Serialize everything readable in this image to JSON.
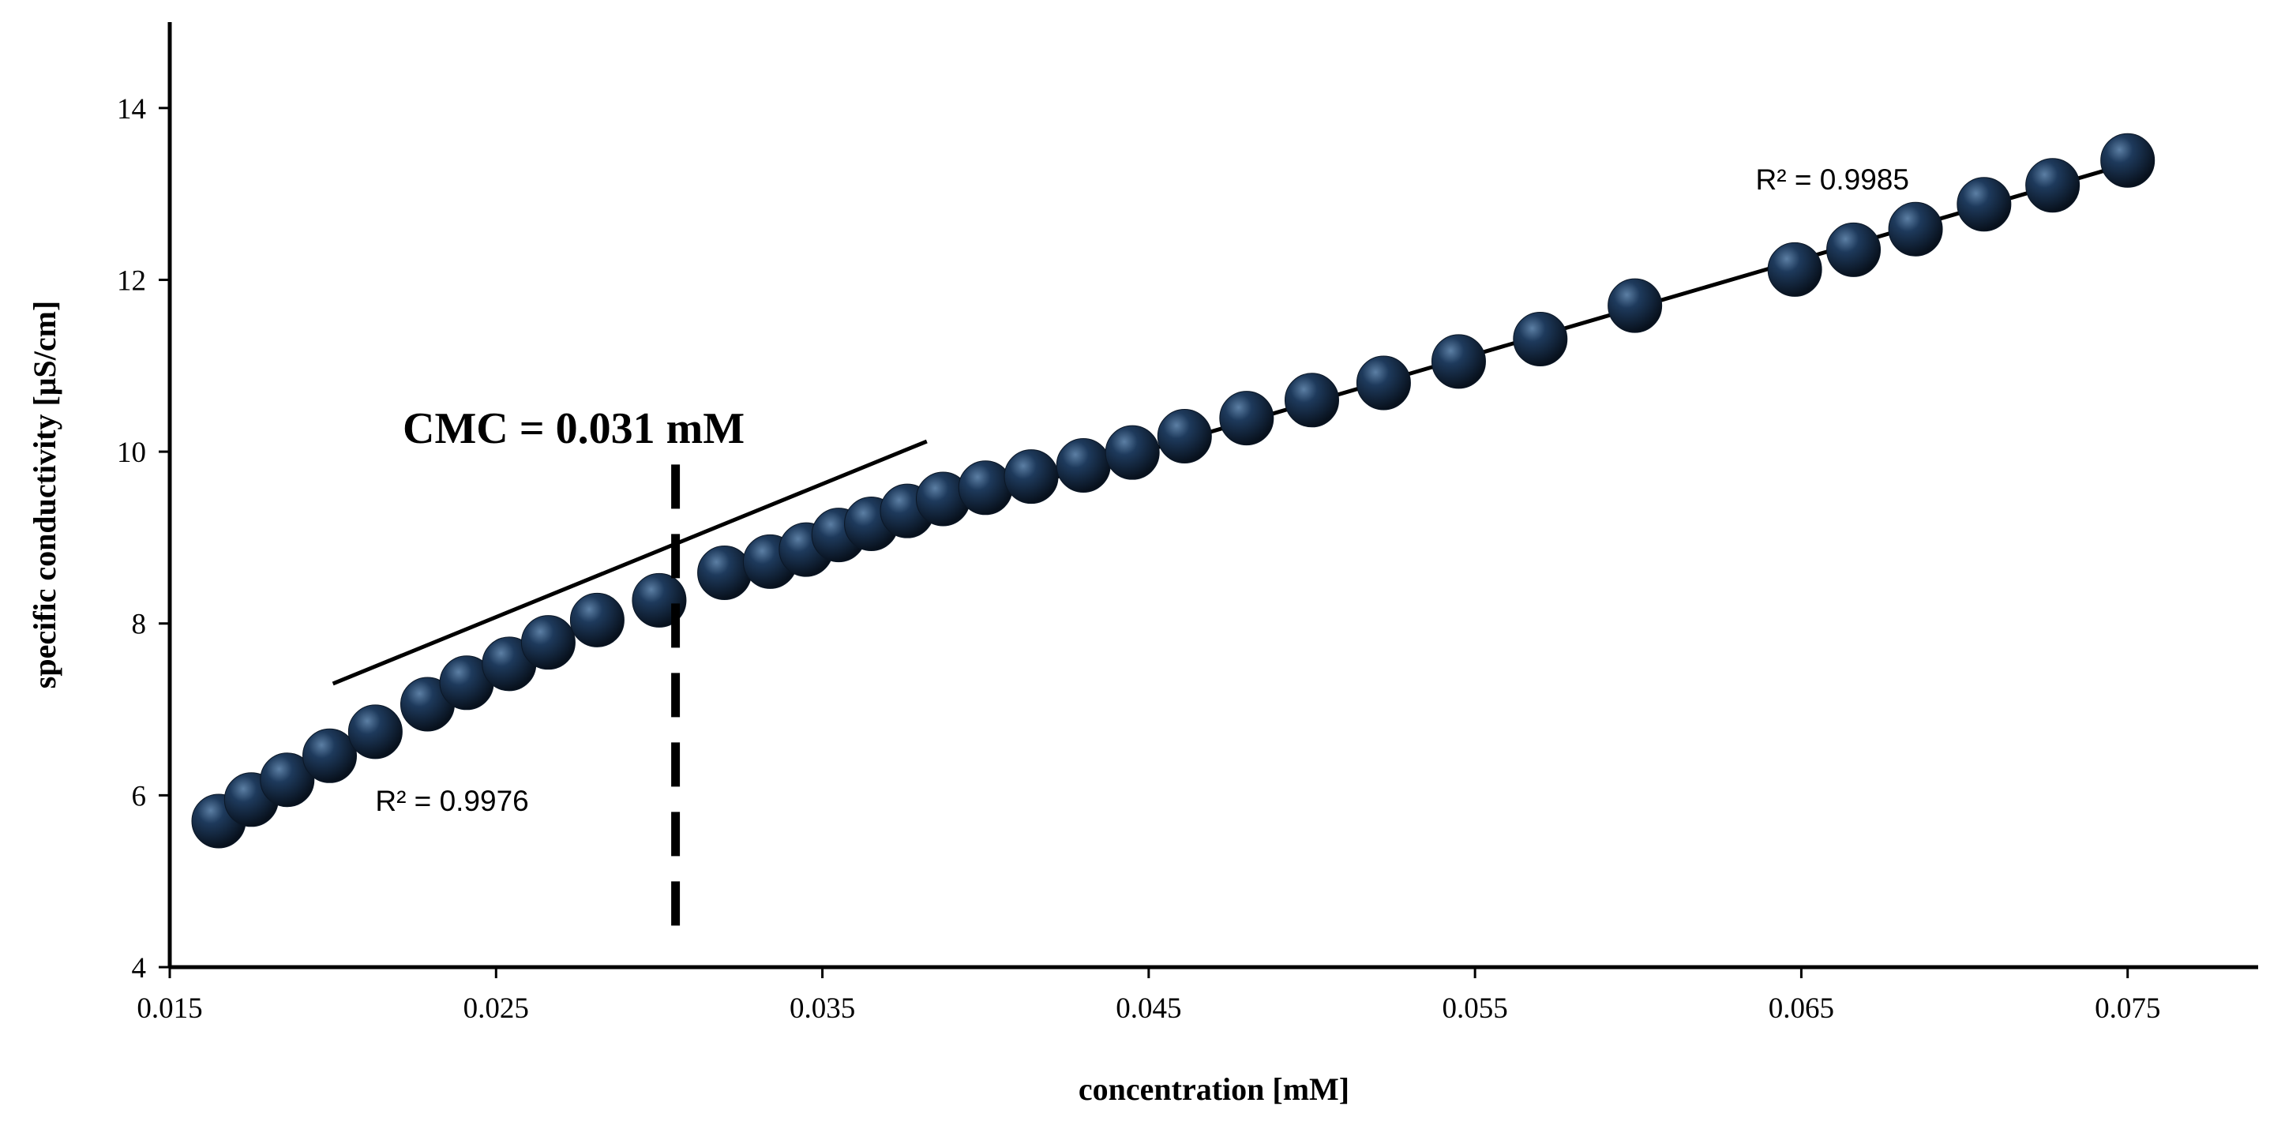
{
  "chart_data": {
    "type": "scatter",
    "title": "",
    "xlabel": "concentration [mM]",
    "ylabel": "specific conductivity [μS/cm]",
    "xlim": [
      0.015,
      0.079
    ],
    "ylim": [
      4,
      15
    ],
    "x_ticks": [
      "0.015",
      "0.025",
      "0.035",
      "0.045",
      "0.055",
      "0.065",
      "0.075"
    ],
    "y_ticks": [
      "4",
      "6",
      "8",
      "10",
      "12",
      "14"
    ],
    "grid": false,
    "marker_color": "#1e3148",
    "series": [
      {
        "points": [
          [
            0.0165,
            5.7
          ],
          [
            0.0175,
            5.95
          ],
          [
            0.0186,
            6.18
          ],
          [
            0.0199,
            6.46
          ],
          [
            0.0213,
            6.74
          ],
          [
            0.0229,
            7.06
          ],
          [
            0.0241,
            7.31
          ],
          [
            0.0254,
            7.53
          ],
          [
            0.0266,
            7.78
          ],
          [
            0.0281,
            8.04
          ],
          [
            0.03,
            8.27
          ],
          [
            0.032,
            8.59
          ],
          [
            0.0334,
            8.72
          ],
          [
            0.0345,
            8.86
          ],
          [
            0.0355,
            9.03
          ],
          [
            0.0365,
            9.16
          ],
          [
            0.0376,
            9.31
          ],
          [
            0.0387,
            9.45
          ],
          [
            0.04,
            9.58
          ],
          [
            0.0414,
            9.71
          ],
          [
            0.043,
            9.84
          ],
          [
            0.0445,
            9.99
          ],
          [
            0.0461,
            10.18
          ],
          [
            0.048,
            10.39
          ],
          [
            0.05,
            10.6
          ],
          [
            0.0522,
            10.8
          ],
          [
            0.0545,
            11.05
          ],
          [
            0.057,
            11.31
          ],
          [
            0.0599,
            11.7
          ],
          [
            0.0648,
            12.12
          ],
          [
            0.0666,
            12.35
          ],
          [
            0.0685,
            12.59
          ],
          [
            0.0706,
            12.88
          ],
          [
            0.0727,
            13.1
          ],
          [
            0.075,
            13.39
          ]
        ]
      }
    ],
    "trendlines": [
      {
        "x": [
          0.02,
          0.0382
        ],
        "y": [
          7.3,
          10.12
        ]
      },
      {
        "x": [
          0.0313,
          0.075
        ],
        "y": [
          8.5,
          13.35
        ]
      }
    ],
    "cmc": {
      "x": 0.0305,
      "y_range": [
        4.35,
        9.85
      ]
    },
    "annotations": {
      "cmc_label": "CMC = 0.031 mM",
      "r2_right": "R² = 0.9985",
      "r2_left": "R² = 0.9976"
    }
  }
}
